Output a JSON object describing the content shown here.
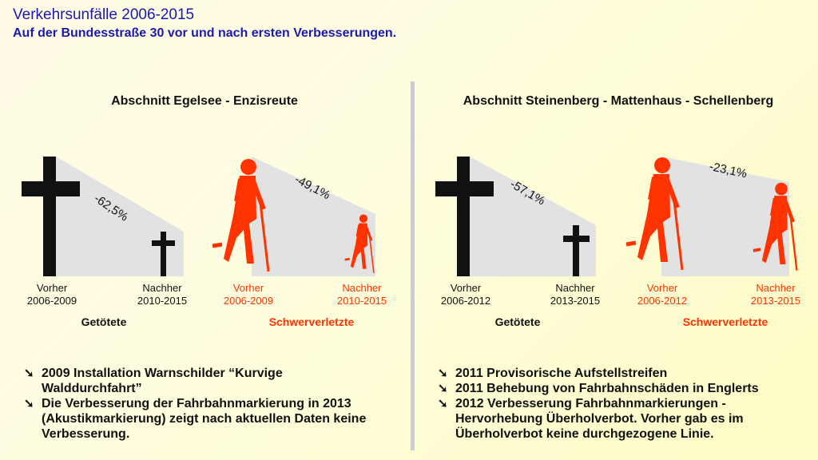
{
  "header": {
    "title": "Verkehrsunfälle 2006-2015",
    "subtitle": "Auf der Bundesstraße 30 vor und nach ersten Verbesserungen."
  },
  "colors": {
    "title": "#1a1ab0",
    "injured": "#ff3300",
    "killed": "#111111",
    "wedge": "#e2e2e2"
  },
  "icons": {
    "killed": "cross-icon",
    "injured": "crutch-person-icon",
    "bullet": "arrow-down-right-icon"
  },
  "panels": [
    {
      "heading": "Abschnitt Egelsee - Enzisreute",
      "killed": {
        "category": "Getötete",
        "change": "-62,5%",
        "before_label": "Vorher",
        "before_period": "2006-2009",
        "after_label": "Nachher",
        "after_period": "2010-2015"
      },
      "injured": {
        "category": "Schwerverletzte",
        "change": "-49,1%",
        "before_label": "Vorher",
        "before_period": "2006-2009",
        "after_label": "Nachher",
        "after_period": "2010-2015"
      },
      "bullets": [
        "2009 Installation Warnschilder “Kurvige Walddurchfahrt”",
        "Die Verbesserung der Fahrbahnmarkierung in 2013 (Akustikmarkierung) zeigt nach aktuellen Daten keine Verbesserung."
      ]
    },
    {
      "heading": "Abschnitt Steinenberg - Mattenhaus - Schellenberg",
      "killed": {
        "category": "Getötete",
        "change": "-57,1%",
        "before_label": "Vorher",
        "before_period": "2006-2012",
        "after_label": "Nachher",
        "after_period": "2013-2015"
      },
      "injured": {
        "category": "Schwerverletzte",
        "change": "-23,1%",
        "before_label": "Vorher",
        "before_period": "2006-2012",
        "after_label": "Nachher",
        "after_period": "2013-2015"
      },
      "bullets": [
        "2011 Provisorische Aufstellstreifen",
        "2011 Behebung von Fahrbahnschäden in Englerts",
        "2012 Verbesserung Fahrbahnmarkierungen - Hervorhebung Überholverbot. Vorher gab es im Überholverbot keine durchgezogene Linie."
      ]
    }
  ]
}
